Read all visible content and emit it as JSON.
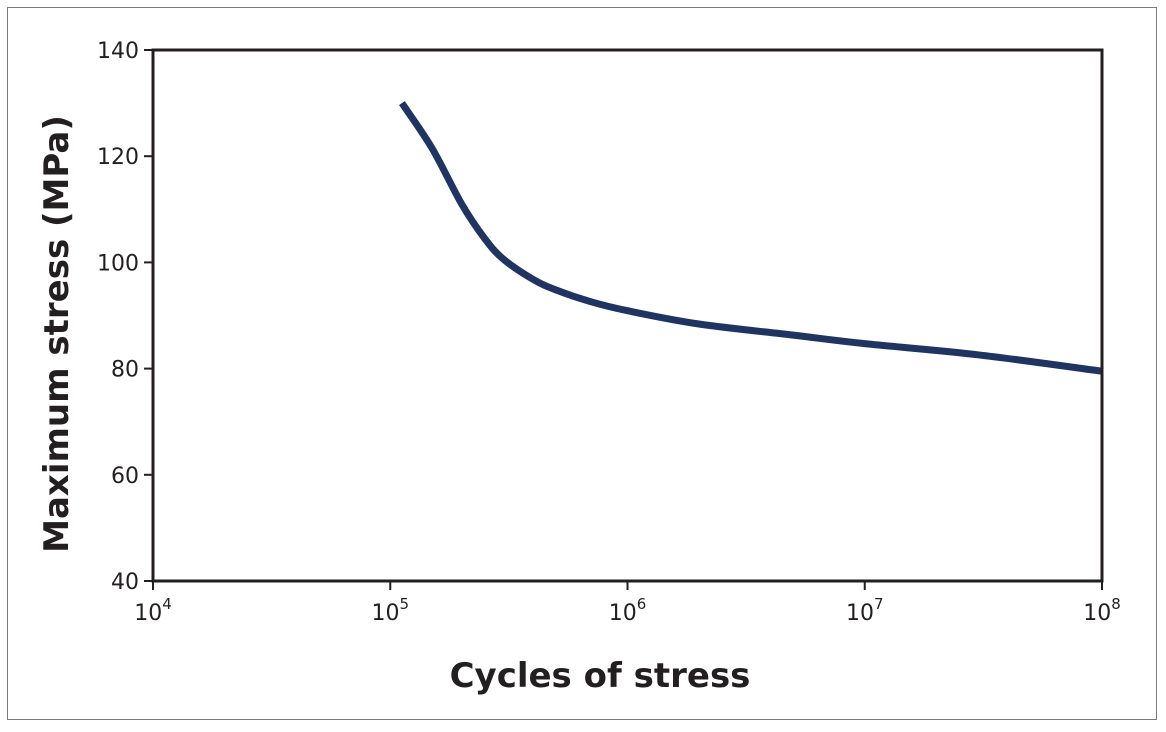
{
  "chart_data": {
    "type": "line",
    "title": "",
    "xlabel": "Cycles of stress",
    "ylabel": "Maximum stress (MPa)",
    "x_scale": "log",
    "xlim": [
      10000,
      100000000
    ],
    "ylim": [
      40,
      140
    ],
    "grid": false,
    "legend": "none",
    "x_ticks": [
      {
        "value": 10000,
        "base": "10",
        "exp": "4"
      },
      {
        "value": 100000,
        "base": "10",
        "exp": "5"
      },
      {
        "value": 1000000,
        "base": "10",
        "exp": "6"
      },
      {
        "value": 10000000,
        "base": "10",
        "exp": "7"
      },
      {
        "value": 100000000,
        "base": "10",
        "exp": "8"
      }
    ],
    "y_ticks": [
      {
        "value": 40,
        "label": "40"
      },
      {
        "value": 60,
        "label": "60"
      },
      {
        "value": 80,
        "label": "80"
      },
      {
        "value": 100,
        "label": "100"
      },
      {
        "value": 120,
        "label": "120"
      },
      {
        "value": 140,
        "label": "140"
      }
    ],
    "series": [
      {
        "color": "#1f3461",
        "x": [
          112000,
          150000,
          200000,
          250000,
          300000,
          400000,
          500000,
          700000,
          1000000,
          2000000,
          5000000,
          10000000,
          30000000,
          100000000
        ],
        "y": [
          130,
          121.5,
          111,
          104.5,
          100.6,
          96.8,
          94.8,
          92.6,
          90.9,
          88.4,
          86.3,
          84.7,
          82.6,
          79.5
        ]
      }
    ]
  }
}
